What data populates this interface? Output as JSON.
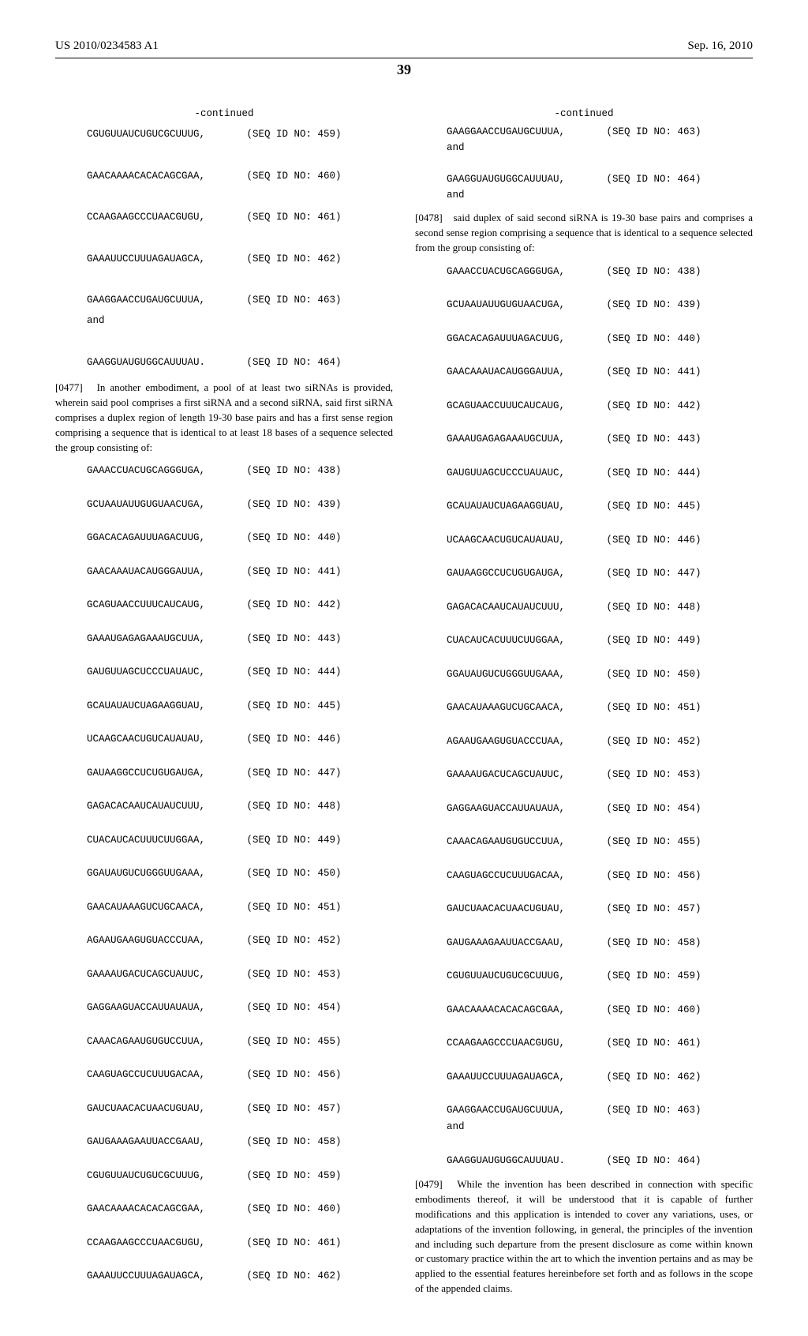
{
  "header": {
    "pubNumber": "US 2010/0234583 A1",
    "pubDate": "Sep. 16, 2010",
    "pageDisplay": "39"
  },
  "continuedLabel": "-continued",
  "leftCol": {
    "seqTop": [
      {
        "seq": "CGUGUUAUCUGUCGCUUUG,",
        "id": "(SEQ ID NO: 459)"
      },
      {
        "seq": "GAACAAAACACACAGCGAA,",
        "id": "(SEQ ID NO: 460)"
      },
      {
        "seq": "CCAAGAAGCCCUAACGUGU,",
        "id": "(SEQ ID NO: 461)"
      },
      {
        "seq": "GAAAUUCCUUUAGAUAGCA,",
        "id": "(SEQ ID NO: 462)"
      },
      {
        "seq": "GAAGGAACCUGAUGCUUUA,\nand",
        "id": "(SEQ ID NO: 463)"
      },
      {
        "seq": "GAAGGUAUGUGGCAUUUAU.",
        "id": "(SEQ ID NO: 464)"
      }
    ],
    "para0477": {
      "num": "[0477]",
      "text": "In another embodiment, a pool of at least two siRNAs is provided, wherein said pool comprises a first siRNA and a second siRNA, said first siRNA comprises a duplex region of length 19-30 base pairs and has a first sense region comprising a sequence that is identical to at least 18 bases of a sequence selected the group consisting of:"
    },
    "seqMain": [
      {
        "seq": "GAAACCUACUGCAGGGUGA,",
        "id": "(SEQ ID NO: 438)"
      },
      {
        "seq": "GCUAAUAUUGUGUAACUGA,",
        "id": "(SEQ ID NO: 439)"
      },
      {
        "seq": "GGACACAGAUUUAGACUUG,",
        "id": "(SEQ ID NO: 440)"
      },
      {
        "seq": "GAACAAAUACAUGGGAUUA,",
        "id": "(SEQ ID NO: 441)"
      },
      {
        "seq": "GCAGUAACCUUUCAUCAUG,",
        "id": "(SEQ ID NO: 442)"
      },
      {
        "seq": "GAAAUGAGAGAAAUGCUUA,",
        "id": "(SEQ ID NO: 443)"
      },
      {
        "seq": "GAUGUUAGCUCCCUAUAUC,",
        "id": "(SEQ ID NO: 444)"
      },
      {
        "seq": "GCAUAUAUCUAGAAGGUAU,",
        "id": "(SEQ ID NO: 445)"
      },
      {
        "seq": "UCAAGCAACUGUCAUAUAU,",
        "id": "(SEQ ID NO: 446)"
      },
      {
        "seq": "GAUAAGGCCUCUGUGAUGA,",
        "id": "(SEQ ID NO: 447)"
      },
      {
        "seq": "GAGACACAAUCAUAUCUUU,",
        "id": "(SEQ ID NO: 448)"
      },
      {
        "seq": "CUACAUCACUUUCUUGGAA,",
        "id": "(SEQ ID NO: 449)"
      },
      {
        "seq": "GGAUAUGUCUGGGUUGAAA,",
        "id": "(SEQ ID NO: 450)"
      },
      {
        "seq": "GAACAUAAAGUCUGCAACA,",
        "id": "(SEQ ID NO: 451)"
      },
      {
        "seq": "AGAAUGAAGUGUACCCUAA,",
        "id": "(SEQ ID NO: 452)"
      },
      {
        "seq": "GAAAAUGACUCAGCUAUUC,",
        "id": "(SEQ ID NO: 453)"
      },
      {
        "seq": "GAGGAAGUACCAUUAUAUA,",
        "id": "(SEQ ID NO: 454)"
      },
      {
        "seq": "CAAACAGAAUGUGUCCUUA,",
        "id": "(SEQ ID NO: 455)"
      },
      {
        "seq": "CAAGUAGCCUCUUUGACAA,",
        "id": "(SEQ ID NO: 456)"
      },
      {
        "seq": "GAUCUAACACUAACUGUAU,",
        "id": "(SEQ ID NO: 457)"
      },
      {
        "seq": "GAUGAAAGAAUUACCGAAU,",
        "id": "(SEQ ID NO: 458)"
      },
      {
        "seq": "CGUGUUAUCUGUCGCUUUG,",
        "id": "(SEQ ID NO: 459)"
      },
      {
        "seq": "GAACAAAACACACAGCGAA,",
        "id": "(SEQ ID NO: 460)"
      },
      {
        "seq": "CCAAGAAGCCCUAACGUGU,",
        "id": "(SEQ ID NO: 461)"
      },
      {
        "seq": "GAAAUUCCUUUAGAUAGCA,",
        "id": "(SEQ ID NO: 462)"
      }
    ]
  },
  "rightCol": {
    "seqTop": [
      {
        "seq": "GAAGGAACCUGAUGCUUUA,\nand",
        "id": "(SEQ ID NO: 463)"
      },
      {
        "seq": "GAAGGUAUGUGGCAUUUAU,\nand",
        "id": "(SEQ ID NO: 464)"
      }
    ],
    "para0478": {
      "num": "[0478]",
      "text": "said duplex of said second siRNA is 19-30 base pairs and comprises a second sense region comprising a sequence that is identical to a sequence selected from the group consisting of:"
    },
    "seqMain": [
      {
        "seq": "GAAACCUACUGCAGGGUGA,",
        "id": "(SEQ ID NO: 438)"
      },
      {
        "seq": "GCUAAUAUUGUGUAACUGA,",
        "id": "(SEQ ID NO: 439)"
      },
      {
        "seq": "GGACACAGAUUUAGACUUG,",
        "id": "(SEQ ID NO: 440)"
      },
      {
        "seq": "GAACAAAUACAUGGGAUUA,",
        "id": "(SEQ ID NO: 441)"
      },
      {
        "seq": "GCAGUAACCUUUCAUCAUG,",
        "id": "(SEQ ID NO: 442)"
      },
      {
        "seq": "GAAAUGAGAGAAAUGCUUA,",
        "id": "(SEQ ID NO: 443)"
      },
      {
        "seq": "GAUGUUAGCUCCCUAUAUC,",
        "id": "(SEQ ID NO: 444)"
      },
      {
        "seq": "GCAUAUAUCUAGAAGGUAU,",
        "id": "(SEQ ID NO: 445)"
      },
      {
        "seq": "UCAAGCAACUGUCAUAUAU,",
        "id": "(SEQ ID NO: 446)"
      },
      {
        "seq": "GAUAAGGCCUCUGUGAUGA,",
        "id": "(SEQ ID NO: 447)"
      },
      {
        "seq": "GAGACACAAUCAUAUCUUU,",
        "id": "(SEQ ID NO: 448)"
      },
      {
        "seq": "CUACAUCACUUUCUUGGAA,",
        "id": "(SEQ ID NO: 449)"
      },
      {
        "seq": "GGAUAUGUCUGGGUUGAAA,",
        "id": "(SEQ ID NO: 450)"
      },
      {
        "seq": "GAACAUAAAGUCUGCAACA,",
        "id": "(SEQ ID NO: 451)"
      },
      {
        "seq": "AGAAUGAAGUGUACCCUAA,",
        "id": "(SEQ ID NO: 452)"
      },
      {
        "seq": "GAAAAUGACUCAGCUAUUC,",
        "id": "(SEQ ID NO: 453)"
      },
      {
        "seq": "GAGGAAGUACCAUUAUAUA,",
        "id": "(SEQ ID NO: 454)"
      },
      {
        "seq": "CAAACAGAAUGUGUCCUUA,",
        "id": "(SEQ ID NO: 455)"
      },
      {
        "seq": "CAAGUAGCCUCUUUGACAA,",
        "id": "(SEQ ID NO: 456)"
      },
      {
        "seq": "GAUCUAACACUAACUGUAU,",
        "id": "(SEQ ID NO: 457)"
      },
      {
        "seq": "GAUGAAAGAAUUACCGAAU,",
        "id": "(SEQ ID NO: 458)"
      },
      {
        "seq": "CGUGUUAUCUGUCGCUUUG,",
        "id": "(SEQ ID NO: 459)"
      },
      {
        "seq": "GAACAAAACACACAGCGAA,",
        "id": "(SEQ ID NO: 460)"
      },
      {
        "seq": "CCAAGAAGCCCUAACGUGU,",
        "id": "(SEQ ID NO: 461)"
      },
      {
        "seq": "GAAAUUCCUUUAGAUAGCA,",
        "id": "(SEQ ID NO: 462)"
      },
      {
        "seq": "GAAGGAACCUGAUGCUUUA,\nand",
        "id": "(SEQ ID NO: 463)"
      },
      {
        "seq": "GAAGGUAUGUGGCAUUUAU.",
        "id": "(SEQ ID NO: 464)"
      }
    ],
    "para0479": {
      "num": "[0479]",
      "text": "While the invention has been described in connection with specific embodiments thereof, it will be understood that it is capable of further modifications and this application is intended to cover any variations, uses, or adaptations of the invention following, in general, the principles of the invention and including such departure from the present disclosure as come within known or customary practice within the art to which the invention pertains and as may be applied to the essential features hereinbefore set forth and as follows in the scope of the appended claims."
    }
  }
}
